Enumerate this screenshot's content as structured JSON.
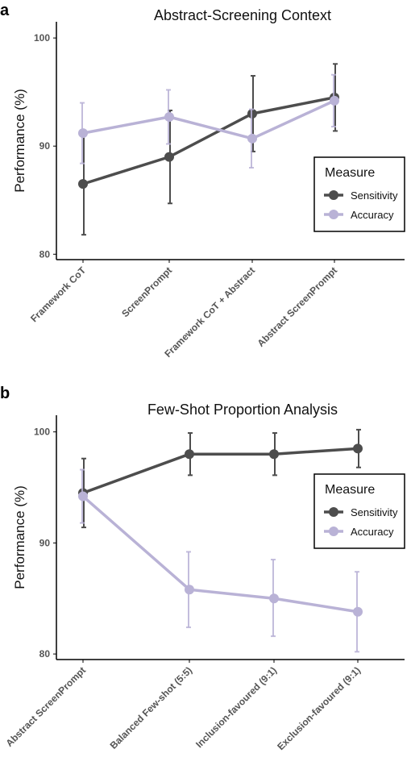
{
  "chart_data": [
    {
      "panel": "a",
      "type": "line",
      "title": "Abstract-Screening Context",
      "xlabel": "",
      "ylabel": "Performance (%)",
      "ylim": [
        79.5,
        101.5
      ],
      "yticks": [
        80,
        90,
        100
      ],
      "categories": [
        "Framework CoT",
        "ScreenPrompt",
        "Framework CoT + Abstract",
        "Abstract ScreenPrompt"
      ],
      "legend_title": "Measure",
      "legend_position": "right",
      "grid": false,
      "series": [
        {
          "name": "Sensitivity",
          "color": "#4d4d4d",
          "values": [
            86.5,
            89.0,
            93.0,
            94.5
          ],
          "err_low": [
            81.8,
            84.7,
            89.5,
            91.4
          ],
          "err_high": [
            91.2,
            93.3,
            96.5,
            97.6
          ]
        },
        {
          "name": "Accuracy",
          "color": "#b9b2d6",
          "values": [
            91.2,
            92.7,
            90.7,
            94.2
          ],
          "err_low": [
            88.4,
            90.2,
            88.0,
            91.8
          ],
          "err_high": [
            94.0,
            95.2,
            93.4,
            96.6
          ]
        }
      ]
    },
    {
      "panel": "b",
      "type": "line",
      "title": "Few-Shot Proportion Analysis",
      "xlabel": "",
      "ylabel": "Performance (%)",
      "ylim": [
        79.5,
        101.5
      ],
      "yticks": [
        80,
        90,
        100
      ],
      "categories": [
        "Abstract ScreenPrompt",
        "Balanced Few-shot (5:5)",
        "Inclusion-favoured (9:1)",
        "Exclusion-favoured (9:1)"
      ],
      "legend_title": "Measure",
      "legend_position": "right",
      "grid": false,
      "series": [
        {
          "name": "Sensitivity",
          "color": "#4d4d4d",
          "values": [
            94.5,
            98.0,
            98.0,
            98.5
          ],
          "err_low": [
            91.4,
            96.1,
            96.1,
            96.8
          ],
          "err_high": [
            97.6,
            99.9,
            99.9,
            100.2
          ]
        },
        {
          "name": "Accuracy",
          "color": "#b9b2d6",
          "values": [
            94.2,
            85.8,
            85.0,
            83.8
          ],
          "err_low": [
            91.8,
            82.4,
            81.6,
            80.2
          ],
          "err_high": [
            96.6,
            89.2,
            88.5,
            87.4
          ]
        }
      ]
    }
  ]
}
